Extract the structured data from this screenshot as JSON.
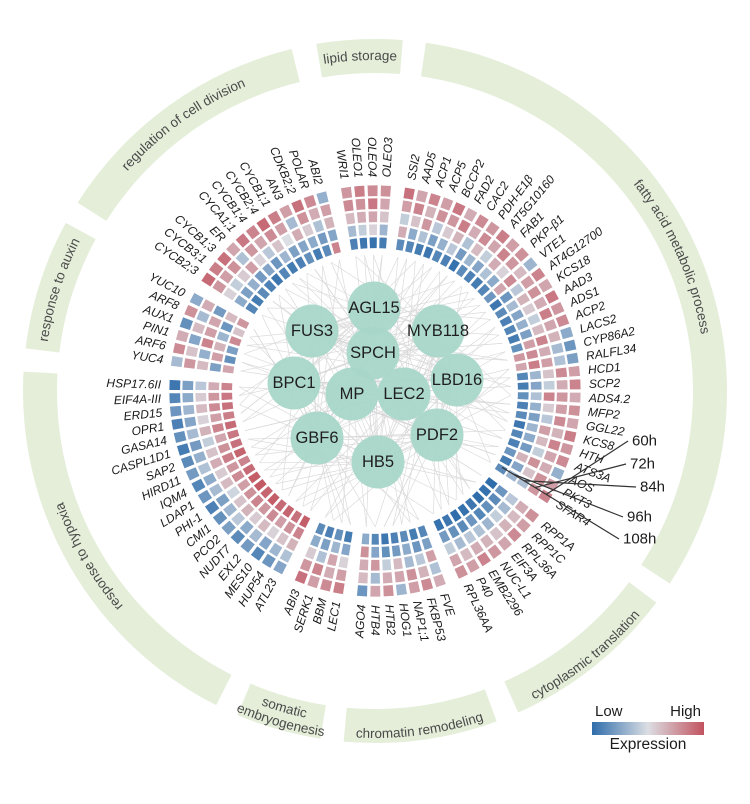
{
  "chart_data": {
    "type": "heatmap",
    "description": "Circular gene-expression heatmap (5 time rings) with GO-term sectors and central transcription-factor network",
    "rings": [
      "60h",
      "72h",
      "84h",
      "96h",
      "108h"
    ],
    "legend": {
      "low": "Low",
      "high": "High",
      "title": "Expression"
    },
    "network_nodes": [
      "AGL15",
      "FUS3",
      "MYB118",
      "SPCH",
      "BPC1",
      "MP",
      "LEC2",
      "LBD16",
      "GBF6",
      "PDF2",
      "HB5"
    ],
    "sectors": [
      {
        "label": "lipid storage",
        "genes": [
          {
            "g": "WRI1",
            "v": [
              0.9,
              1.1,
              0.4,
              -0.5,
              -1.6
            ]
          },
          {
            "g": "OLEO1",
            "v": [
              1.3,
              1.0,
              0.6,
              -0.2,
              -1.8
            ]
          },
          {
            "g": "OLEO4",
            "v": [
              1.1,
              1.4,
              0.7,
              0.1,
              -1.9
            ]
          },
          {
            "g": "OLEO3",
            "v": [
              1.0,
              0.7,
              0.3,
              -0.6,
              -1.7
            ]
          }
        ]
      },
      {
        "label": "fatty acid metabolic process",
        "genes": [
          {
            "g": "SSI2",
            "v": [
              1.5,
              0.8,
              -0.2,
              0.6,
              -1.4
            ]
          },
          {
            "g": "AAD5",
            "v": [
              0.7,
              1.2,
              0.3,
              -0.8,
              -1.5
            ]
          },
          {
            "g": "ACP1",
            "v": [
              1.2,
              0.5,
              0.9,
              -0.4,
              -1.7
            ]
          },
          {
            "g": "ACP5",
            "v": [
              0.8,
              1.0,
              -0.3,
              -1.0,
              -1.8
            ]
          },
          {
            "g": "BCCP2",
            "v": [
              1.4,
              0.9,
              0.2,
              -0.7,
              -1.5
            ]
          },
          {
            "g": "FAD2",
            "v": [
              0.6,
              1.3,
              0.5,
              -0.3,
              -1.6
            ]
          },
          {
            "g": "CAC2",
            "v": [
              1.1,
              0.6,
              -0.4,
              -1.1,
              -1.9
            ]
          },
          {
            "g": "PDH-E1β",
            "v": [
              0.9,
              1.1,
              0.4,
              -0.6,
              -1.4
            ]
          },
          {
            "g": "AT5G10160",
            "v": [
              1.3,
              0.7,
              -0.2,
              -0.9,
              -1.6
            ]
          },
          {
            "g": "FAB1",
            "v": [
              0.8,
              1.2,
              0.6,
              -0.4,
              -1.7
            ]
          },
          {
            "g": "PKP-β1",
            "v": [
              1.0,
              0.9,
              0.1,
              -0.8,
              -1.5
            ]
          },
          {
            "g": "VTE1",
            "v": [
              -0.6,
              0.4,
              1.1,
              0.7,
              -1.2
            ]
          },
          {
            "g": "AT4G12700",
            "v": [
              1.2,
              0.8,
              -0.3,
              -1.2,
              -1.8
            ]
          },
          {
            "g": "KCS18",
            "v": [
              0.7,
              1.0,
              0.5,
              -0.5,
              -1.4
            ]
          },
          {
            "g": "AAD3",
            "v": [
              1.4,
              0.6,
              0.2,
              -0.9,
              -1.6
            ]
          },
          {
            "g": "ADS1",
            "v": [
              0.9,
              1.3,
              -0.2,
              -0.7,
              -1.5
            ]
          },
          {
            "g": "ACP2",
            "v": [
              1.1,
              0.7,
              0.4,
              -1.0,
              -1.7
            ]
          },
          {
            "g": "LACS2",
            "v": [
              -0.8,
              0.5,
              1.2,
              0.8,
              -1.3
            ]
          },
          {
            "g": "CYP86A2",
            "v": [
              -1.2,
              -0.5,
              0.6,
              1.1,
              0.9
            ]
          },
          {
            "g": "RALFL34",
            "v": [
              -1.0,
              -0.4,
              0.8,
              1.3,
              0.7
            ]
          },
          {
            "g": "HCD1",
            "v": [
              0.8,
              1.1,
              0.3,
              -0.6,
              -1.5
            ]
          },
          {
            "g": "SCP2",
            "v": [
              1.2,
              0.6,
              -0.2,
              -0.9,
              -1.7
            ]
          },
          {
            "g": "ADS4.2",
            "v": [
              0.6,
              0.9,
              1.2,
              -0.4,
              -1.3
            ]
          },
          {
            "g": "MFP2",
            "v": [
              1.0,
              0.8,
              0.2,
              -0.7,
              -1.6
            ]
          },
          {
            "g": "GGL22",
            "v": [
              0.7,
              1.1,
              -0.3,
              -1.0,
              -1.4
            ]
          },
          {
            "g": "KCS8",
            "v": [
              1.3,
              0.5,
              0.8,
              -0.6,
              -1.8
            ]
          },
          {
            "g": "HTH",
            "v": [
              0.9,
              1.2,
              0.4,
              -0.8,
              -1.5
            ]
          },
          {
            "g": "ATS3A",
            "v": [
              1.1,
              0.7,
              -0.2,
              -1.1,
              -1.6
            ]
          },
          {
            "g": "AOS",
            "v": [
              -0.7,
              0.6,
              1.0,
              0.5,
              -1.2
            ]
          },
          {
            "g": "PKT3",
            "v": [
              0.8,
              1.0,
              0.3,
              -0.9,
              -1.7
            ]
          },
          {
            "g": "SFAR4",
            "v": [
              1.2,
              0.9,
              -0.4,
              -0.6,
              -1.4
            ]
          }
        ]
      },
      {
        "label": "cytoplasmic translation",
        "genes": [
          {
            "g": "RPP1A",
            "v": [
              1.0,
              0.6,
              -0.3,
              -1.2,
              -2.0
            ]
          },
          {
            "g": "RPP1C",
            "v": [
              0.8,
              0.4,
              -0.5,
              -1.4,
              -1.9
            ]
          },
          {
            "g": "RPL36A",
            "v": [
              1.1,
              0.5,
              -0.2,
              -1.3,
              -2.0
            ]
          },
          {
            "g": "EIF3A",
            "v": [
              0.7,
              0.3,
              -0.6,
              -1.5,
              -1.8
            ]
          },
          {
            "g": "NUC-L1",
            "v": [
              0.9,
              0.5,
              -0.4,
              -1.2,
              -1.9
            ]
          },
          {
            "g": "EMB2296",
            "v": [
              1.2,
              0.6,
              -0.3,
              -1.4,
              -2.0
            ]
          },
          {
            "g": "P40",
            "v": [
              0.8,
              0.4,
              -0.5,
              -1.3,
              -1.8
            ]
          },
          {
            "g": "RPL36AA",
            "v": [
              1.0,
              0.7,
              -0.2,
              -1.1,
              -1.9
            ]
          }
        ]
      },
      {
        "label": "chromatin remodeling",
        "genes": [
          {
            "g": "FVE",
            "v": [
              0.6,
              -0.4,
              0.8,
              -1.0,
              -1.5
            ]
          },
          {
            "g": "FKBP53",
            "v": [
              1.1,
              0.5,
              -0.3,
              -1.2,
              -1.7
            ]
          },
          {
            "g": "NAP1;1",
            "v": [
              0.8,
              1.0,
              -0.5,
              -0.8,
              -1.4
            ]
          },
          {
            "g": "HOG1",
            "v": [
              -0.6,
              0.7,
              0.4,
              -1.1,
              -1.6
            ]
          },
          {
            "g": "HTB2",
            "v": [
              1.0,
              0.6,
              -0.2,
              -1.3,
              -1.8
            ]
          },
          {
            "g": "HTB4",
            "v": [
              0.7,
              -0.5,
              0.9,
              -0.9,
              -1.5
            ]
          },
          {
            "g": "AGO4",
            "v": [
              -1.2,
              0.4,
              0.6,
              1.0,
              -0.8
            ]
          }
        ]
      },
      {
        "label": "somatic embryogenesis",
        "label_lines": [
          "somatic",
          "embryogenesis"
        ],
        "genes": [
          {
            "g": "LEC1",
            "v": [
              1.3,
              0.8,
              0.1,
              -0.9,
              -1.7
            ]
          },
          {
            "g": "BBM",
            "v": [
              1.1,
              0.6,
              0.7,
              -0.6,
              -1.3
            ]
          },
          {
            "g": "SERK1",
            "v": [
              0.8,
              1.2,
              -0.4,
              -1.0,
              -1.6
            ]
          },
          {
            "g": "ABI3",
            "v": [
              1.5,
              0.9,
              0.2,
              -0.8,
              -1.4
            ]
          }
        ]
      },
      {
        "label": "response to hypoxia",
        "genes": [
          {
            "g": "ATL23",
            "v": [
              -0.9,
              -0.4,
              0.5,
              1.2,
              1.8
            ]
          },
          {
            "g": "HUP54",
            "v": [
              -1.2,
              -0.6,
              0.3,
              1.0,
              1.5
            ]
          },
          {
            "g": "MES10",
            "v": [
              -1.5,
              -0.9,
              0.1,
              0.8,
              1.7
            ]
          },
          {
            "g": "EXL2",
            "v": [
              -1.1,
              -0.5,
              0.4,
              1.1,
              1.6
            ]
          },
          {
            "g": "NUDT7",
            "v": [
              -1.4,
              -0.8,
              0.2,
              0.9,
              1.8
            ]
          },
          {
            "g": "PCO2",
            "v": [
              -1.0,
              -0.3,
              0.5,
              1.2,
              1.7
            ]
          },
          {
            "g": "CMI1",
            "v": [
              -1.3,
              -0.6,
              0.3,
              1.0,
              1.9
            ]
          },
          {
            "g": "PHI-1",
            "v": [
              -1.6,
              -1.0,
              -0.1,
              0.8,
              1.8
            ]
          },
          {
            "g": "LDAP1",
            "v": [
              -1.2,
              -0.5,
              0.4,
              1.1,
              1.6
            ]
          },
          {
            "g": "IQM4",
            "v": [
              -1.5,
              -0.8,
              0.2,
              0.9,
              1.2
            ]
          },
          {
            "g": "HIRD11",
            "v": [
              -1.1,
              -0.4,
              0.6,
              1.3,
              1.7
            ]
          },
          {
            "g": "SAP2",
            "v": [
              -1.4,
              -0.7,
              0.3,
              1.0,
              1.5
            ]
          },
          {
            "g": "CASPL1D1",
            "v": [
              -1.7,
              -1.1,
              -0.2,
              0.7,
              1.4
            ]
          },
          {
            "g": "GASA14",
            "v": [
              -1.3,
              -0.5,
              0.5,
              1.2,
              1.6
            ]
          },
          {
            "g": "OPR1",
            "v": [
              -1.6,
              -0.9,
              0.1,
              0.8,
              1.3
            ]
          },
          {
            "g": "ERD15",
            "v": [
              -1.2,
              -0.6,
              0.4,
              1.1,
              1.5
            ]
          },
          {
            "g": "EIF4A-III",
            "v": [
              -1.5,
              -0.8,
              0.2,
              0.9,
              1.4
            ]
          },
          {
            "g": "HSP17.6II",
            "v": [
              -1.8,
              -1.0,
              -0.3,
              0.6,
              1.2
            ]
          }
        ]
      },
      {
        "label": "response to auxin",
        "genes": [
          {
            "g": "YUC4",
            "v": [
              -0.5,
              0.9,
              0.4,
              -1.0,
              0.7
            ]
          },
          {
            "g": "ARF6",
            "v": [
              1.1,
              0.3,
              -0.7,
              0.8,
              -1.3
            ]
          },
          {
            "g": "PIN1",
            "v": [
              0.6,
              -0.9,
              1.2,
              0.5,
              -1.0
            ]
          },
          {
            "g": "AUX1",
            "v": [
              -1.3,
              0.4,
              0.8,
              -0.6,
              1.1
            ]
          },
          {
            "g": "ARF8",
            "v": [
              1.0,
              -0.5,
              0.7,
              -1.2,
              0.3
            ]
          },
          {
            "g": "YUC10",
            "v": [
              -0.8,
              0.6,
              -1.1,
              0.4,
              0.9
            ]
          }
        ]
      },
      {
        "label": "regulation of cell division",
        "genes": [
          {
            "g": "CYCB2;3",
            "v": [
              1.6,
              0.9,
              0.1,
              -0.8,
              -1.5
            ]
          },
          {
            "g": "CYCB3;1",
            "v": [
              1.3,
              0.8,
              -0.2,
              -1.0,
              -1.7
            ]
          },
          {
            "g": "CYCB1;3",
            "v": [
              1.5,
              1.0,
              0.2,
              -0.7,
              -1.4
            ]
          },
          {
            "g": "ER",
            "v": [
              0.7,
              -0.4,
              0.8,
              -1.1,
              -1.6
            ]
          },
          {
            "g": "CYCA1;1",
            "v": [
              1.4,
              0.9,
              0.1,
              -0.9,
              -1.8
            ]
          },
          {
            "g": "CYCB1;4",
            "v": [
              1.2,
              0.7,
              -0.3,
              -1.2,
              -1.5
            ]
          },
          {
            "g": "CYCB2;4",
            "v": [
              1.6,
              1.1,
              0.3,
              -0.6,
              -1.7
            ]
          },
          {
            "g": "CYCB1;1",
            "v": [
              1.3,
              0.8,
              0.0,
              -1.0,
              -1.6
            ]
          },
          {
            "g": "AN3",
            "v": [
              0.8,
              -0.5,
              0.6,
              -0.9,
              -1.3
            ]
          },
          {
            "g": "CDKB2;2",
            "v": [
              1.5,
              1.0,
              0.2,
              -0.8,
              -1.7
            ]
          },
          {
            "g": "POLAR",
            "v": [
              1.1,
              0.6,
              -0.4,
              -1.1,
              -1.4
            ]
          },
          {
            "g": "ABI2",
            "v": [
              -0.7,
              0.8,
              0.5,
              -0.9,
              1.2
            ]
          }
        ]
      }
    ]
  },
  "legend": {
    "low": "Low",
    "high": "High",
    "title": "Expression"
  },
  "colors": {
    "low": "#2f6dab",
    "neutral": "#dbdee3",
    "high": "#c2535f",
    "sector_ring": "#e4eed9",
    "sector_label": "#4a4a4a",
    "node_fill": "#a8d7c8",
    "edge": "#d8d8d8",
    "gene_label": "#1a1a1a",
    "pointer_line": "#333333"
  }
}
